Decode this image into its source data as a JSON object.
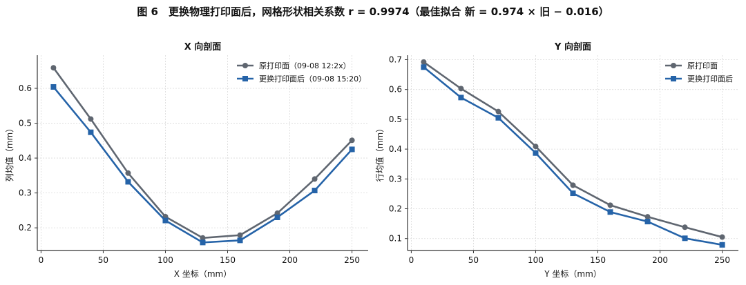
{
  "figure": {
    "title": "图 6　更换物理打印面后，网格形状相关系数 r = 0.9974（最佳拟合 新 = 0.974 × 旧 − 0.016）"
  },
  "colors": {
    "old": "#5f6670",
    "new": "#2563a8"
  },
  "chart_data": [
    {
      "type": "line",
      "title": "X 向剖面",
      "xlabel": "X 坐标（mm）",
      "ylabel": "列均值（mm）",
      "xlim": [
        -3,
        263
      ],
      "ylim": [
        0.135,
        0.695
      ],
      "xticks": [
        0,
        50,
        100,
        150,
        200,
        250
      ],
      "yticks": [
        0.2,
        0.3,
        0.4,
        0.5,
        0.6
      ],
      "ytick_labels": [
        "0.2",
        "0.3",
        "0.4",
        "0.5",
        "0.6"
      ],
      "grid": true,
      "legend": "top-right",
      "x": [
        10,
        40,
        70,
        100,
        130,
        160,
        190,
        220,
        250
      ],
      "series": [
        {
          "name": "原打印面（09-08 12:2x）",
          "marker": "circle",
          "color": "#5f6670",
          "values": [
            0.659,
            0.512,
            0.357,
            0.232,
            0.171,
            0.179,
            0.242,
            0.34,
            0.451
          ]
        },
        {
          "name": "更换打印面后（09-08 15:20）",
          "marker": "square",
          "color": "#2563a8",
          "values": [
            0.604,
            0.474,
            0.332,
            0.221,
            0.158,
            0.164,
            0.23,
            0.307,
            0.425
          ]
        }
      ]
    },
    {
      "type": "line",
      "title": "Y 向剖面",
      "xlabel": "Y 坐标（mm）",
      "ylabel": "行均值（mm）",
      "xlim": [
        -3,
        263
      ],
      "ylim": [
        0.06,
        0.715
      ],
      "xticks": [
        0,
        50,
        100,
        150,
        200,
        250
      ],
      "yticks": [
        0.1,
        0.2,
        0.3,
        0.4,
        0.5,
        0.6,
        0.7
      ],
      "ytick_labels": [
        "0.1",
        "0.2",
        "0.3",
        "0.4",
        "0.5",
        "0.6",
        "0.7"
      ],
      "grid": true,
      "legend": "top-right",
      "x": [
        10,
        40,
        70,
        100,
        130,
        160,
        190,
        220,
        250
      ],
      "series": [
        {
          "name": "原打印面",
          "marker": "circle",
          "color": "#5f6670",
          "values": [
            0.692,
            0.603,
            0.526,
            0.409,
            0.279,
            0.212,
            0.173,
            0.138,
            0.105
          ]
        },
        {
          "name": "更换打印面后",
          "marker": "square",
          "color": "#2563a8",
          "values": [
            0.675,
            0.573,
            0.505,
            0.387,
            0.252,
            0.189,
            0.157,
            0.101,
            0.079
          ]
        }
      ]
    }
  ]
}
